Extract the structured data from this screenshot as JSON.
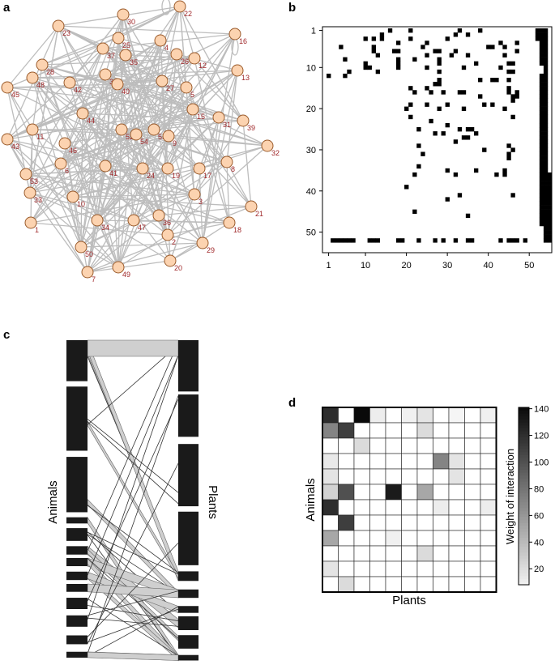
{
  "panels": [
    "a",
    "b",
    "c",
    "d"
  ],
  "network": {
    "nodes": [
      "22",
      "30",
      "16",
      "23",
      "25",
      "37",
      "4",
      "26",
      "12",
      "28",
      "35",
      "13",
      "48",
      "38",
      "27",
      "40",
      "42",
      "45",
      "5",
      "15",
      "44",
      "31",
      "39",
      "52",
      "54",
      "51",
      "9",
      "11",
      "46",
      "43",
      "32",
      "6",
      "41",
      "24",
      "19",
      "17",
      "8",
      "53",
      "10",
      "33",
      "34",
      "47",
      "36",
      "2",
      "21",
      "3",
      "29",
      "18",
      "1",
      "7",
      "50",
      "49",
      "20"
    ]
  },
  "matrix": {
    "xlim": [
      -0.5,
      55.5
    ],
    "ylim": [
      0.1,
      55
    ],
    "xticks": [
      1,
      10,
      20,
      30,
      40,
      50
    ],
    "yticks": [
      1,
      10,
      20,
      30,
      40,
      50
    ]
  },
  "bipartite": {
    "left_label": "Animals",
    "right_label": "Plants"
  },
  "heatmap": {
    "x_label": "Plants",
    "y_label": "Animals",
    "colorbar_label": "Weight of interaction",
    "clim": [
      8,
      141
    ],
    "cticks": [
      20,
      40,
      60,
      80,
      100,
      120,
      140
    ],
    "values": [
      [
        120,
        0,
        140,
        10,
        0,
        8,
        15,
        0,
        5,
        0,
        8
      ],
      [
        70,
        110,
        0,
        0,
        0,
        0,
        20,
        0,
        0,
        0,
        0
      ],
      [
        0,
        0,
        20,
        0,
        0,
        0,
        0,
        0,
        0,
        0,
        0
      ],
      [
        12,
        0,
        0,
        0,
        0,
        0,
        0,
        70,
        15,
        0,
        0
      ],
      [
        15,
        0,
        0,
        0,
        0,
        0,
        0,
        0,
        15,
        0,
        0
      ],
      [
        25,
        100,
        0,
        0,
        130,
        0,
        50,
        0,
        0,
        0,
        0
      ],
      [
        120,
        0,
        0,
        0,
        0,
        0,
        0,
        10,
        0,
        0,
        10
      ],
      [
        0,
        110,
        0,
        0,
        0,
        0,
        0,
        0,
        0,
        0,
        0
      ],
      [
        50,
        0,
        0,
        0,
        8,
        0,
        0,
        0,
        0,
        0,
        0
      ],
      [
        0,
        0,
        0,
        0,
        0,
        0,
        20,
        0,
        0,
        0,
        0
      ],
      [
        15,
        0,
        0,
        0,
        0,
        0,
        0,
        0,
        0,
        0,
        0
      ],
      [
        0,
        20,
        0,
        0,
        0,
        0,
        0,
        0,
        0,
        0,
        0
      ]
    ]
  }
}
